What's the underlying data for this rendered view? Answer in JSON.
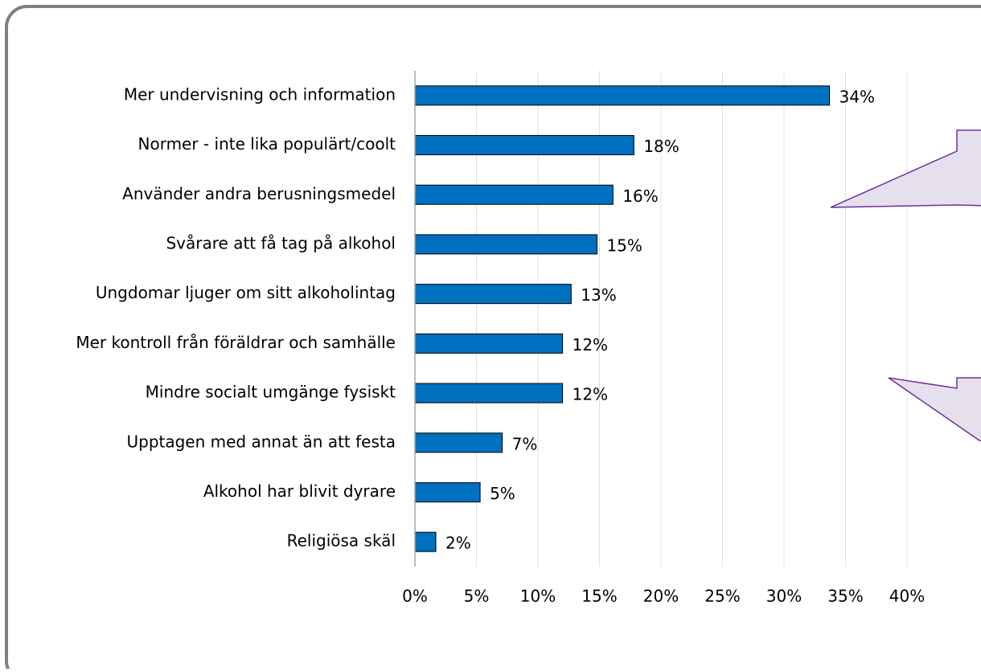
{
  "chart_data": {
    "type": "bar",
    "orientation": "horizontal",
    "categories": [
      "Mer undervisning och information",
      "Normer - inte lika populärt/coolt",
      "Använder andra berusningsmedel",
      "Svårare att få tag på alkohol",
      "Ungdomar ljuger om sitt alkoholintag",
      "Mer kontroll från föräldrar och samhälle",
      "Mindre socialt umgänge fysiskt",
      "Upptagen med annat än att festa",
      "Alkohol har blivit dyrare",
      "Religiösa skäl"
    ],
    "values": [
      33.7,
      17.8,
      16.1,
      14.8,
      12.7,
      12.0,
      12.0,
      7.1,
      5.3,
      1.7
    ],
    "value_labels": [
      "34%",
      "18%",
      "16%",
      "15%",
      "13%",
      "12%",
      "12%",
      "7%",
      "5%",
      "2%"
    ],
    "color": "#0070c0",
    "xlim": [
      0,
      40
    ],
    "xticks": [
      {
        "value": 0,
        "label": "0%"
      },
      {
        "value": 5,
        "label": "5%"
      },
      {
        "value": 10,
        "label": "10%"
      },
      {
        "value": 15,
        "label": "15%"
      },
      {
        "value": 20,
        "label": "20%"
      },
      {
        "value": 25,
        "label": "25%"
      },
      {
        "value": 30,
        "label": "30%"
      },
      {
        "value": 35,
        "label": "35%"
      },
      {
        "value": 40,
        "label": "40%"
      }
    ],
    "grid": true
  }
}
